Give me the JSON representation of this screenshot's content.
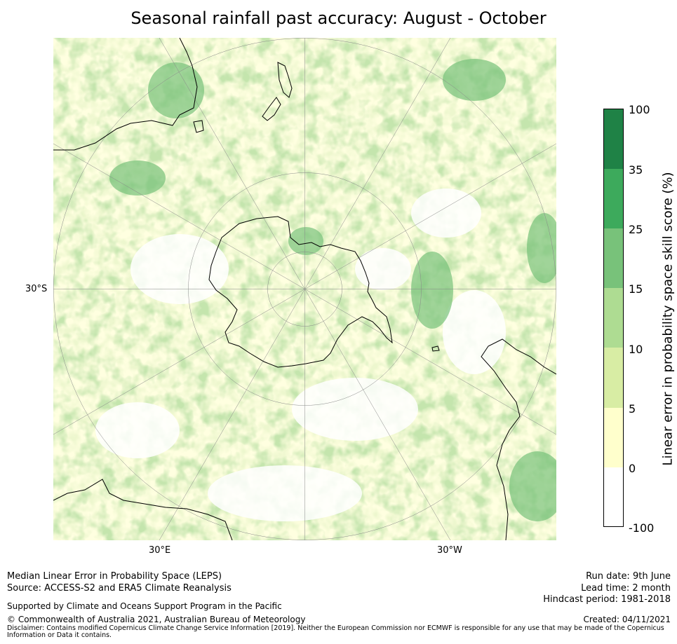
{
  "title": "Seasonal rainfall past accuracy: August - October",
  "map": {
    "lat_label": "30°S",
    "lon_labels": [
      "30°E",
      "30°W"
    ]
  },
  "colorbar": {
    "title": "Linear error in probability space skill score (%)",
    "ticks": [
      "100",
      "35",
      "25",
      "15",
      "10",
      "5",
      "0",
      "-100"
    ],
    "colors": [
      "#1f8246",
      "#3daa5c",
      "#78c27a",
      "#aedc92",
      "#d8eda4",
      "#ffffcc",
      "#ffffff"
    ]
  },
  "footer": {
    "line1": "Median Linear Error in Probability Space (LEPS)",
    "line2": "Source: ACCESS-S2 and ERA5 Climate Reanalysis",
    "support": "Supported by Climate and Oceans Support Program in the Pacific",
    "copyright": "© Commonwealth of Australia 2021, Australian Bureau of Meteorology",
    "disclaimer": "Disclaimer: Contains modified Copernicus Climate Change Service Information [2019]. Neither the European Commission nor ECMWF is responsible for any use that may be made of the Copernicus Information or Data it contains.",
    "run_date": "Run date: 9th June",
    "lead_time": "Lead time: 2 month",
    "hindcast": "Hindcast period: 1981-2018",
    "created": "Created: 04/11/2021"
  }
}
